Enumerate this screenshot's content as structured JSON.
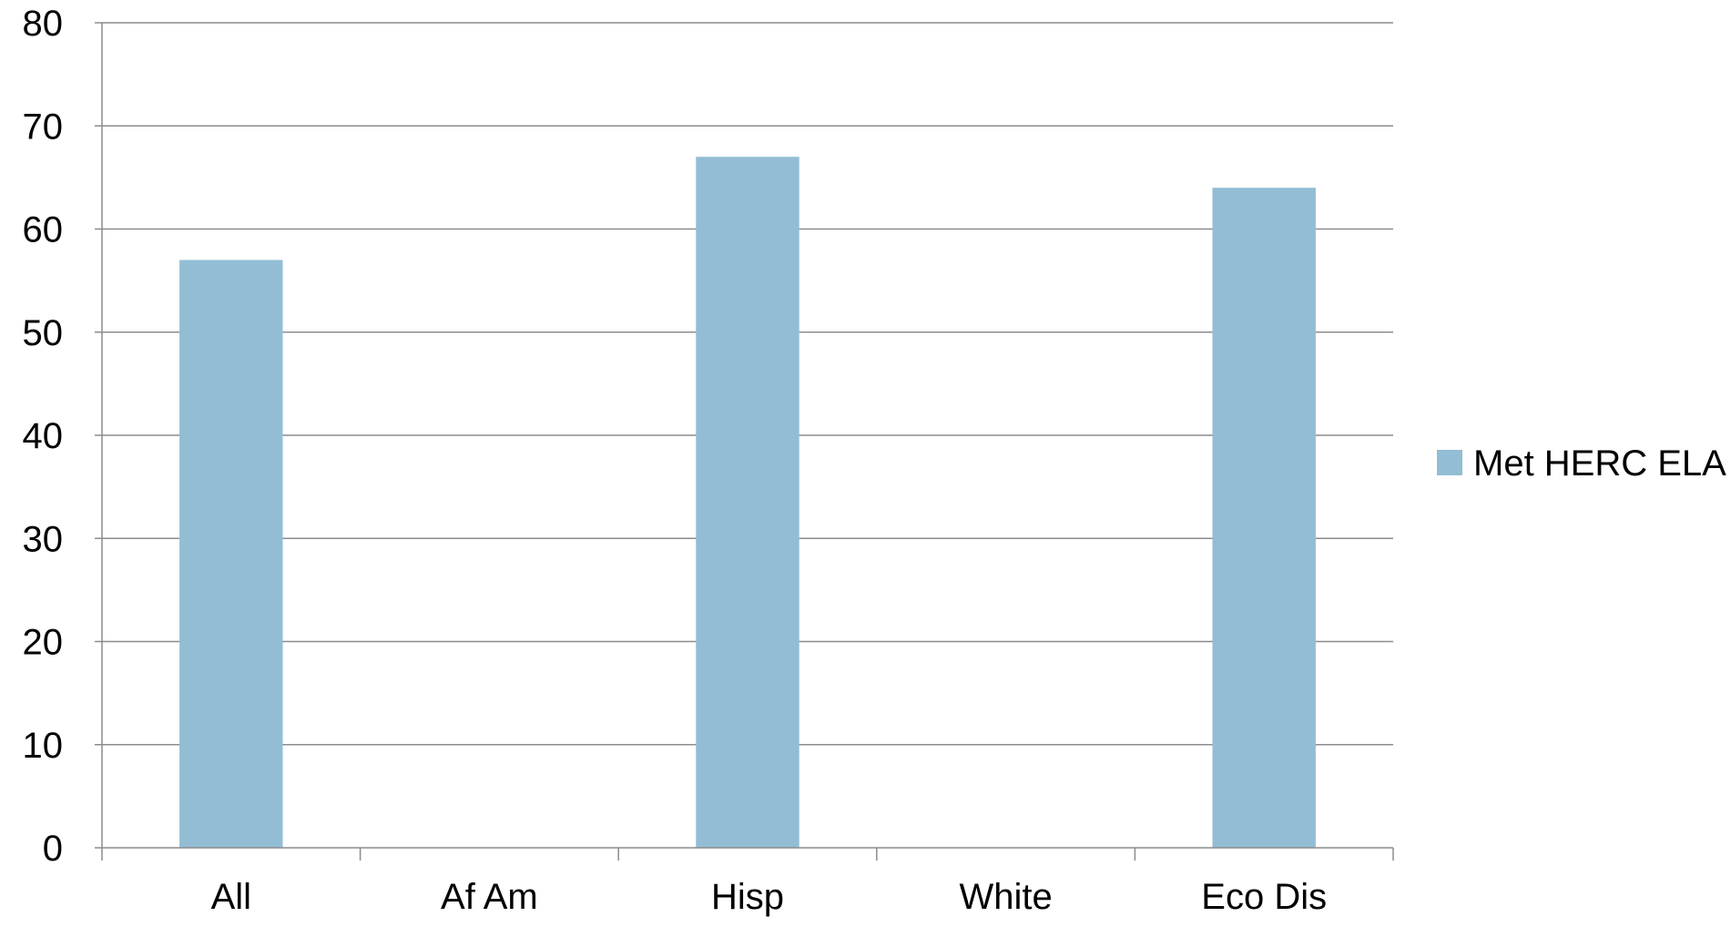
{
  "chart_data": {
    "type": "bar",
    "categories": [
      "All",
      "Af Am",
      "Hisp",
      "White",
      "Eco Dis"
    ],
    "series": [
      {
        "name": "Met HERC ELA",
        "values": [
          57,
          0,
          67,
          0,
          64
        ],
        "color": "#93BDD5"
      }
    ],
    "ylim": [
      0,
      80
    ],
    "yticks": [
      0,
      10,
      20,
      30,
      40,
      50,
      60,
      70,
      80
    ],
    "grid": true,
    "legend": "right",
    "title": "",
    "xlabel": "",
    "ylabel": ""
  },
  "colors": {
    "bar": "#93BDD5",
    "grid": "#8C8C8C",
    "axis": "#8C8C8C",
    "text": "#000000"
  }
}
